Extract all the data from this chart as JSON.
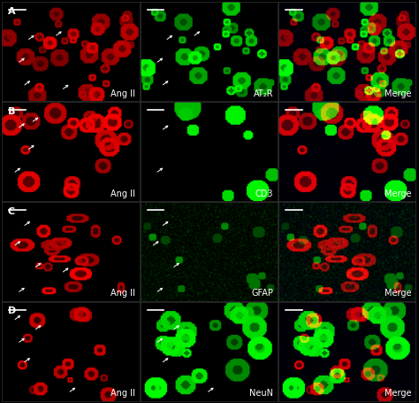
{
  "figsize": [
    4.74,
    4.56
  ],
  "dpi": 100,
  "rows": 4,
  "cols": 3,
  "row_labels": [
    "A",
    "B",
    "C",
    "D"
  ],
  "col1_labels": [
    "Ang II",
    "Ang II",
    "Ang II",
    "Ang II"
  ],
  "col2_labels": [
    "AT₂R",
    "CD3",
    "GFAP",
    "NeuN"
  ],
  "col3_labels": [
    "Merge",
    "Merge",
    "Merge",
    "Merge"
  ],
  "background_color": "#000000",
  "label_color": "#ffffff",
  "row_label_color": "#ffffff",
  "label_fontsize": 7,
  "row_label_fontsize": 8
}
